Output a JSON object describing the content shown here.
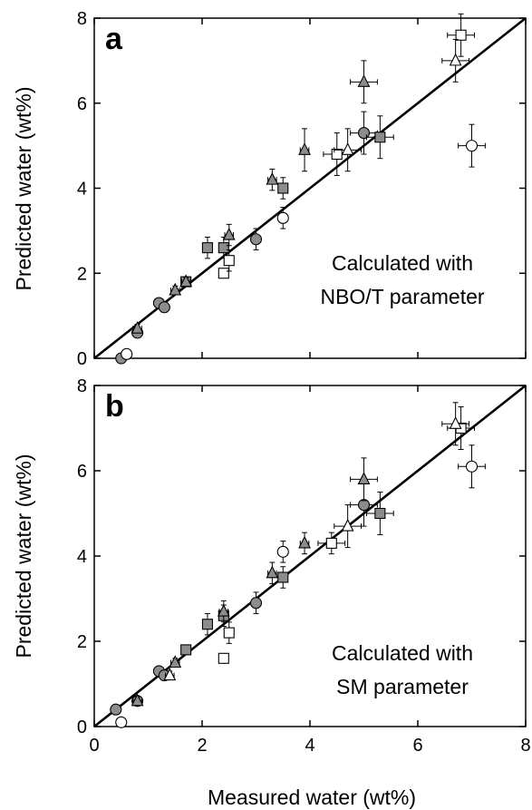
{
  "chart_data": [
    {
      "type": "scatter",
      "panel_label": "a",
      "ylabel": "Predicted water (wt%)",
      "xlabel": "",
      "xlim": [
        0,
        8
      ],
      "ylim": [
        0,
        8
      ],
      "x_ticks": [
        0,
        2,
        4,
        6,
        8
      ],
      "y_ticks": [
        "0",
        "2",
        "4",
        "6",
        "8"
      ],
      "annotation": [
        "Calculated with",
        "NBO/T parameter"
      ],
      "reference_line": {
        "from": [
          0,
          0
        ],
        "to": [
          8,
          8
        ]
      },
      "series": [
        {
          "marker": "circle",
          "fill": "#8c8c8c",
          "points": [
            [
              0.5,
              0.0
            ],
            [
              0.8,
              0.6
            ],
            [
              1.2,
              1.3
            ],
            [
              1.3,
              1.2
            ],
            [
              3.0,
              2.8
            ],
            [
              5.0,
              5.3
            ]
          ]
        },
        {
          "marker": "circle",
          "fill": "#ffffff",
          "points": [
            [
              0.6,
              0.1
            ],
            [
              3.5,
              3.3
            ],
            [
              7.0,
              5.0
            ]
          ]
        },
        {
          "marker": "square",
          "fill": "#8c8c8c",
          "points": [
            [
              1.7,
              1.8
            ],
            [
              2.1,
              2.6
            ],
            [
              2.4,
              2.6
            ],
            [
              3.5,
              4.0
            ],
            [
              5.3,
              5.2
            ]
          ]
        },
        {
          "marker": "square",
          "fill": "#ffffff",
          "points": [
            [
              2.4,
              2.0
            ],
            [
              2.5,
              2.3
            ],
            [
              4.5,
              4.8
            ],
            [
              6.8,
              7.6
            ]
          ]
        },
        {
          "marker": "triangle",
          "fill": "#8c8c8c",
          "points": [
            [
              0.8,
              0.7
            ],
            [
              1.5,
              1.6
            ],
            [
              1.7,
              1.8
            ],
            [
              2.5,
              2.9
            ],
            [
              3.3,
              4.2
            ],
            [
              3.9,
              4.9
            ],
            [
              5.0,
              6.5
            ]
          ]
        },
        {
          "marker": "triangle",
          "fill": "#ffffff",
          "points": [
            [
              4.7,
              4.9
            ],
            [
              6.7,
              7.0
            ]
          ]
        }
      ]
    },
    {
      "type": "scatter",
      "panel_label": "b",
      "ylabel": "Predicted water (wt%)",
      "xlabel": "Measured water (wt%)",
      "xlim": [
        0,
        8
      ],
      "ylim": [
        0,
        8
      ],
      "x_ticks": [
        "0",
        "2",
        "4",
        "6",
        "8"
      ],
      "y_ticks": [
        "0",
        "2",
        "4",
        "6",
        "8"
      ],
      "annotation": [
        "Calculated with",
        "SM parameter"
      ],
      "reference_line": {
        "from": [
          0,
          0
        ],
        "to": [
          8,
          8
        ]
      },
      "series": [
        {
          "marker": "circle",
          "fill": "#8c8c8c",
          "points": [
            [
              0.4,
              0.4
            ],
            [
              0.8,
              0.6
            ],
            [
              1.2,
              1.3
            ],
            [
              1.3,
              1.2
            ],
            [
              3.0,
              2.9
            ],
            [
              5.0,
              5.2
            ]
          ]
        },
        {
          "marker": "circle",
          "fill": "#ffffff",
          "points": [
            [
              0.5,
              0.1
            ],
            [
              3.5,
              4.1
            ],
            [
              7.0,
              6.1
            ]
          ]
        },
        {
          "marker": "square",
          "fill": "#8c8c8c",
          "points": [
            [
              1.7,
              1.8
            ],
            [
              2.1,
              2.4
            ],
            [
              2.4,
              2.6
            ],
            [
              3.5,
              3.5
            ],
            [
              5.3,
              5.0
            ]
          ]
        },
        {
          "marker": "square",
          "fill": "#ffffff",
          "points": [
            [
              2.4,
              1.6
            ],
            [
              2.5,
              2.2
            ],
            [
              4.4,
              4.3
            ],
            [
              6.8,
              7.0
            ]
          ]
        },
        {
          "marker": "triangle",
          "fill": "#8c8c8c",
          "points": [
            [
              0.8,
              0.6
            ],
            [
              1.5,
              1.5
            ],
            [
              2.4,
              2.7
            ],
            [
              3.3,
              3.6
            ],
            [
              3.9,
              4.3
            ],
            [
              5.0,
              5.8
            ]
          ]
        },
        {
          "marker": "triangle",
          "fill": "#ffffff",
          "points": [
            [
              1.4,
              1.2
            ],
            [
              4.7,
              4.7
            ],
            [
              6.7,
              7.1
            ]
          ]
        }
      ]
    }
  ]
}
